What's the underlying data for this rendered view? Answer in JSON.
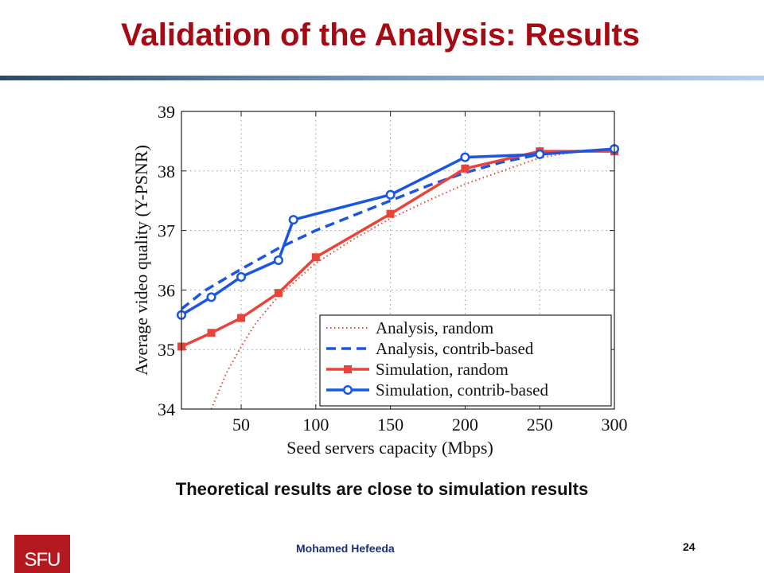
{
  "slide": {
    "title": "Validation of the Analysis: Results",
    "caption": "Theoretical results are close to simulation results",
    "footer_author": "Mohamed  Hefeeda",
    "footer_page": "24",
    "logo_text": "SFU",
    "title_color": "#a50b14"
  },
  "chart_data": {
    "type": "line",
    "title": "",
    "xlabel": "Seed servers capacity (Mbps)",
    "ylabel": "Average video quality (Y-PSNR)",
    "xlim": [
      10,
      300
    ],
    "ylim": [
      34,
      39
    ],
    "x_ticks": [
      50,
      100,
      150,
      200,
      250,
      300
    ],
    "y_ticks": [
      34,
      35,
      36,
      37,
      38,
      39
    ],
    "grid": true,
    "legend_position": "bottom-right",
    "series": [
      {
        "name": "Analysis, random",
        "style": "dotted",
        "marker": "none",
        "color": "#e8443a",
        "x": [
          30,
          40,
          50,
          60,
          75,
          100,
          125,
          150,
          175,
          200,
          225,
          250,
          275,
          300
        ],
        "y": [
          34.0,
          34.6,
          35.05,
          35.45,
          35.9,
          36.45,
          36.85,
          37.2,
          37.5,
          37.78,
          38.0,
          38.22,
          38.33,
          38.35
        ]
      },
      {
        "name": "Analysis, contrib-based",
        "style": "dashed",
        "marker": "none",
        "color": "#1a56e0",
        "x": [
          10,
          25,
          50,
          75,
          100,
          125,
          150,
          175,
          200,
          225,
          250,
          275,
          300
        ],
        "y": [
          35.68,
          35.98,
          36.35,
          36.7,
          37.0,
          37.25,
          37.5,
          37.75,
          37.97,
          38.15,
          38.28,
          38.33,
          38.36
        ]
      },
      {
        "name": "Simulation, random",
        "style": "solid",
        "marker": "square",
        "color": "#e8443a",
        "x": [
          10,
          30,
          50,
          75,
          100,
          150,
          200,
          250,
          300
        ],
        "y": [
          35.05,
          35.28,
          35.53,
          35.95,
          36.55,
          37.28,
          38.04,
          38.33,
          38.33
        ]
      },
      {
        "name": "Simulation, contrib-based",
        "style": "solid",
        "marker": "circle",
        "color": "#1a56e0",
        "x": [
          10,
          30,
          50,
          75,
          85,
          150,
          200,
          250,
          300
        ],
        "y": [
          35.58,
          35.88,
          36.22,
          36.5,
          37.18,
          37.6,
          38.23,
          38.28,
          38.37
        ]
      }
    ]
  }
}
